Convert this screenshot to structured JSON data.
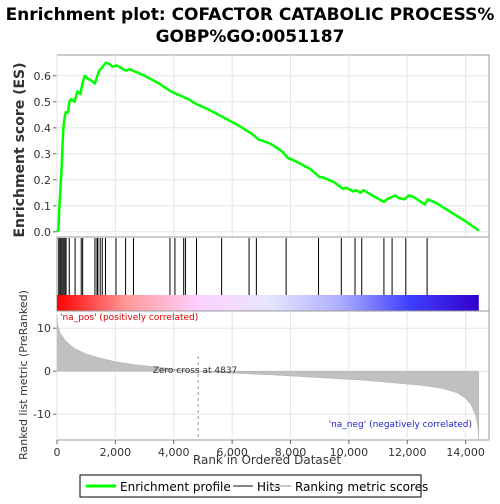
{
  "chart_data": {
    "type": "line",
    "title_line1": "Enrichment plot: COFACTOR CATABOLIC PROCESS%",
    "title_line2": "GOBP%GO:0051187",
    "es_panel": {
      "ylabel": "Enrichment score (ES)",
      "ylim": [
        -0.02,
        0.68
      ],
      "yticks": [
        "0.0",
        "0.1",
        "0.2",
        "0.3",
        "0.4",
        "0.5",
        "0.6"
      ],
      "ytick_values": [
        0.0,
        0.1,
        0.2,
        0.3,
        0.4,
        0.5,
        0.6
      ],
      "series": [
        {
          "name": "Enrichment profile",
          "color": "#00ff00",
          "points": [
            [
              0,
              0.0
            ],
            [
              50,
              0.01
            ],
            [
              80,
              0.09
            ],
            [
              120,
              0.17
            ],
            [
              160,
              0.25
            ],
            [
              190,
              0.33
            ],
            [
              220,
              0.4
            ],
            [
              260,
              0.44
            ],
            [
              300,
              0.46
            ],
            [
              380,
              0.46
            ],
            [
              420,
              0.5
            ],
            [
              480,
              0.51
            ],
            [
              600,
              0.5
            ],
            [
              700,
              0.54
            ],
            [
              800,
              0.53
            ],
            [
              870,
              0.57
            ],
            [
              950,
              0.6
            ],
            [
              1050,
              0.59
            ],
            [
              1200,
              0.58
            ],
            [
              1300,
              0.57
            ],
            [
              1380,
              0.6
            ],
            [
              1450,
              0.62
            ],
            [
              1530,
              0.63
            ],
            [
              1600,
              0.64
            ],
            [
              1680,
              0.65
            ],
            [
              1800,
              0.645
            ],
            [
              1900,
              0.635
            ],
            [
              2050,
              0.64
            ],
            [
              2200,
              0.63
            ],
            [
              2350,
              0.62
            ],
            [
              2500,
              0.625
            ],
            [
              2600,
              0.62
            ],
            [
              2700,
              0.615
            ],
            [
              3000,
              0.6
            ],
            [
              3500,
              0.57
            ],
            [
              3900,
              0.54
            ],
            [
              4200,
              0.525
            ],
            [
              4500,
              0.51
            ],
            [
              4800,
              0.49
            ],
            [
              5200,
              0.47
            ],
            [
              5700,
              0.44
            ],
            [
              6200,
              0.41
            ],
            [
              6700,
              0.375
            ],
            [
              6900,
              0.355
            ],
            [
              7300,
              0.34
            ],
            [
              7700,
              0.31
            ],
            [
              7900,
              0.285
            ],
            [
              8200,
              0.27
            ],
            [
              8700,
              0.24
            ],
            [
              9000,
              0.21
            ],
            [
              9100,
              0.21
            ],
            [
              9500,
              0.19
            ],
            [
              9800,
              0.165
            ],
            [
              9900,
              0.17
            ],
            [
              10150,
              0.155
            ],
            [
              10250,
              0.16
            ],
            [
              10400,
              0.15
            ],
            [
              10500,
              0.16
            ],
            [
              10800,
              0.14
            ],
            [
              11200,
              0.115
            ],
            [
              11300,
              0.125
            ],
            [
              11600,
              0.14
            ],
            [
              11700,
              0.13
            ],
            [
              11900,
              0.125
            ],
            [
              12050,
              0.14
            ],
            [
              12200,
              0.135
            ],
            [
              12600,
              0.105
            ],
            [
              12700,
              0.125
            ],
            [
              13000,
              0.11
            ],
            [
              13500,
              0.075
            ],
            [
              14000,
              0.04
            ],
            [
              14450,
              0.005
            ]
          ]
        }
      ]
    },
    "hits": [
      60,
      100,
      140,
      180,
      230,
      270,
      310,
      420,
      620,
      830,
      880,
      1300,
      1370,
      1400,
      1480,
      1550,
      1660,
      2020,
      2350,
      2620,
      3870,
      4040,
      4340,
      4400,
      4780,
      5640,
      6580,
      6830,
      7850,
      8960,
      9740,
      10210,
      10440,
      11200,
      11480,
      11950,
      12680
    ],
    "color_bar": {
      "stops": [
        "#ff0000",
        "#ff9a9a",
        "#ffd0ff",
        "#e6e6ff",
        "#b0b0ff",
        "#4040ff",
        "#3300cc"
      ]
    },
    "rank_panel": {
      "ylabel": "Ranked list metric (PreRanked)",
      "ylim": [
        -16,
        14
      ],
      "yticks": [
        "10",
        "0",
        "-10"
      ],
      "ytick_values": [
        10,
        0,
        -10
      ],
      "pos_label": "'na_pos' (positively correlated)",
      "neg_label": "'na_neg' (negatively correlated)",
      "zero_cross_label": "Zero cross at 4837",
      "zero_cross": 4837,
      "profile": [
        [
          0,
          13
        ],
        [
          20,
          11
        ],
        [
          100,
          9
        ],
        [
          300,
          7
        ],
        [
          600,
          5.3
        ],
        [
          1000,
          4
        ],
        [
          1500,
          3
        ],
        [
          2000,
          2.2
        ],
        [
          2700,
          1.5
        ],
        [
          3500,
          0.9
        ],
        [
          4200,
          0.4
        ],
        [
          4837,
          0.0
        ],
        [
          5500,
          -0.3
        ],
        [
          6500,
          -0.6
        ],
        [
          7500,
          -0.9
        ],
        [
          8500,
          -1.3
        ],
        [
          9500,
          -1.7
        ],
        [
          10500,
          -2.1
        ],
        [
          11500,
          -2.7
        ],
        [
          12500,
          -3.3
        ],
        [
          13200,
          -4
        ],
        [
          13700,
          -5
        ],
        [
          14000,
          -6.3
        ],
        [
          14200,
          -8
        ],
        [
          14350,
          -10.5
        ],
        [
          14420,
          -13
        ],
        [
          14450,
          -16
        ]
      ]
    },
    "xlabel": "Rank in Ordered Dataset",
    "xlim": [
      0,
      14800
    ],
    "xticks": [
      "0",
      "2,000",
      "4,000",
      "6,000",
      "8,000",
      "10,000",
      "12,000",
      "14,000"
    ],
    "xtick_values": [
      0,
      2000,
      4000,
      6000,
      8000,
      10000,
      12000,
      14000
    ],
    "legend": {
      "placement": "bottom",
      "items": [
        {
          "label": "Enrichment profile",
          "color": "#00ff00"
        },
        {
          "label": "Hits",
          "color": "#888888"
        },
        {
          "label": "Ranking metric scores",
          "color": "#c8c8c8"
        }
      ]
    }
  }
}
